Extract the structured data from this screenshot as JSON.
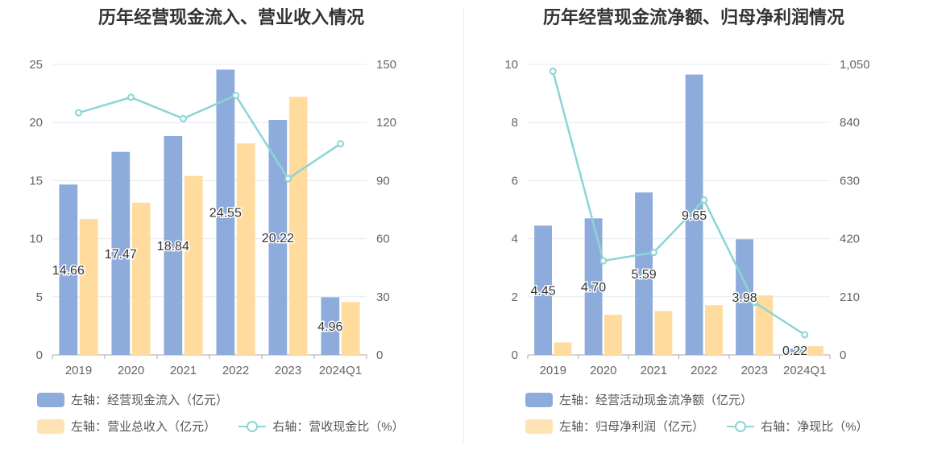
{
  "colors": {
    "bar1": "#8eacdb",
    "bar2": "#ffdb9e",
    "line": "#8cd4d6",
    "grid": "#e4e8f2",
    "axis": "#666666",
    "label": "#333333"
  },
  "charts": [
    {
      "title": "历年经营现金流入、营业收入情况",
      "legend": {
        "bar1": "左轴：经营现金流入（亿元）",
        "bar2": "左轴：营业总收入（亿元）",
        "line": "右轴：营收现金比（%）"
      },
      "left_ticks": [
        "0",
        "5",
        "10",
        "15",
        "20",
        "25"
      ],
      "right_ticks": [
        "0",
        "30",
        "60",
        "90",
        "120",
        "150"
      ]
    },
    {
      "title": "历年经营现金流净额、归母净利润情况",
      "legend": {
        "bar1": "左轴：经营活动现金流净额（亿元）",
        "bar2": "左轴：归母净利润（亿元）",
        "line": "右轴：净现比（%）"
      },
      "left_ticks": [
        "0",
        "2",
        "4",
        "6",
        "8",
        "10"
      ],
      "right_ticks": [
        "0",
        "210",
        "420",
        "630",
        "840",
        "1,050"
      ]
    }
  ],
  "chart_data": [
    {
      "type": "bar",
      "title": "历年经营现金流入、营业收入情况",
      "categories": [
        "2019",
        "2020",
        "2021",
        "2022",
        "2023",
        "2024Q1"
      ],
      "ylim_left": [
        0,
        25
      ],
      "ylim_right": [
        0,
        150
      ],
      "series": [
        {
          "name": "左轴：经营现金流入（亿元）",
          "axis": "left",
          "kind": "bar",
          "values": [
            14.66,
            17.47,
            18.84,
            24.55,
            20.22,
            4.96
          ],
          "labels": [
            "14.66",
            "17.47",
            "18.84",
            "24.55",
            "20.22",
            "4.96"
          ]
        },
        {
          "name": "左轴：营业总收入（亿元）",
          "axis": "left",
          "kind": "bar",
          "values": [
            11.7,
            13.1,
            15.4,
            18.2,
            22.2,
            4.55
          ]
        },
        {
          "name": "右轴：营收现金比（%）",
          "axis": "right",
          "kind": "line",
          "values": [
            125,
            133,
            122,
            134,
            91,
            109
          ]
        }
      ],
      "grid": true,
      "legend_position": "bottom-left"
    },
    {
      "type": "bar",
      "title": "历年经营现金流净额、归母净利润情况",
      "categories": [
        "2019",
        "2020",
        "2021",
        "2022",
        "2023",
        "2024Q1"
      ],
      "ylim_left": [
        0,
        10
      ],
      "ylim_right": [
        0,
        1050
      ],
      "series": [
        {
          "name": "左轴：经营活动现金流净额（亿元）",
          "axis": "left",
          "kind": "bar",
          "values": [
            4.45,
            4.7,
            5.59,
            9.65,
            3.98,
            0.22
          ],
          "labels": [
            "4.45",
            "4.70",
            "5.59",
            "9.65",
            "3.98",
            "0.22"
          ]
        },
        {
          "name": "左轴：归母净利润（亿元）",
          "axis": "left",
          "kind": "bar",
          "values": [
            0.43,
            1.38,
            1.51,
            1.71,
            2.05,
            0.3
          ]
        },
        {
          "name": "右轴：净现比（%）",
          "axis": "right",
          "kind": "line",
          "values": [
            1025,
            340,
            370,
            560,
            190,
            73
          ]
        }
      ],
      "grid": true,
      "legend_position": "bottom-left"
    }
  ]
}
